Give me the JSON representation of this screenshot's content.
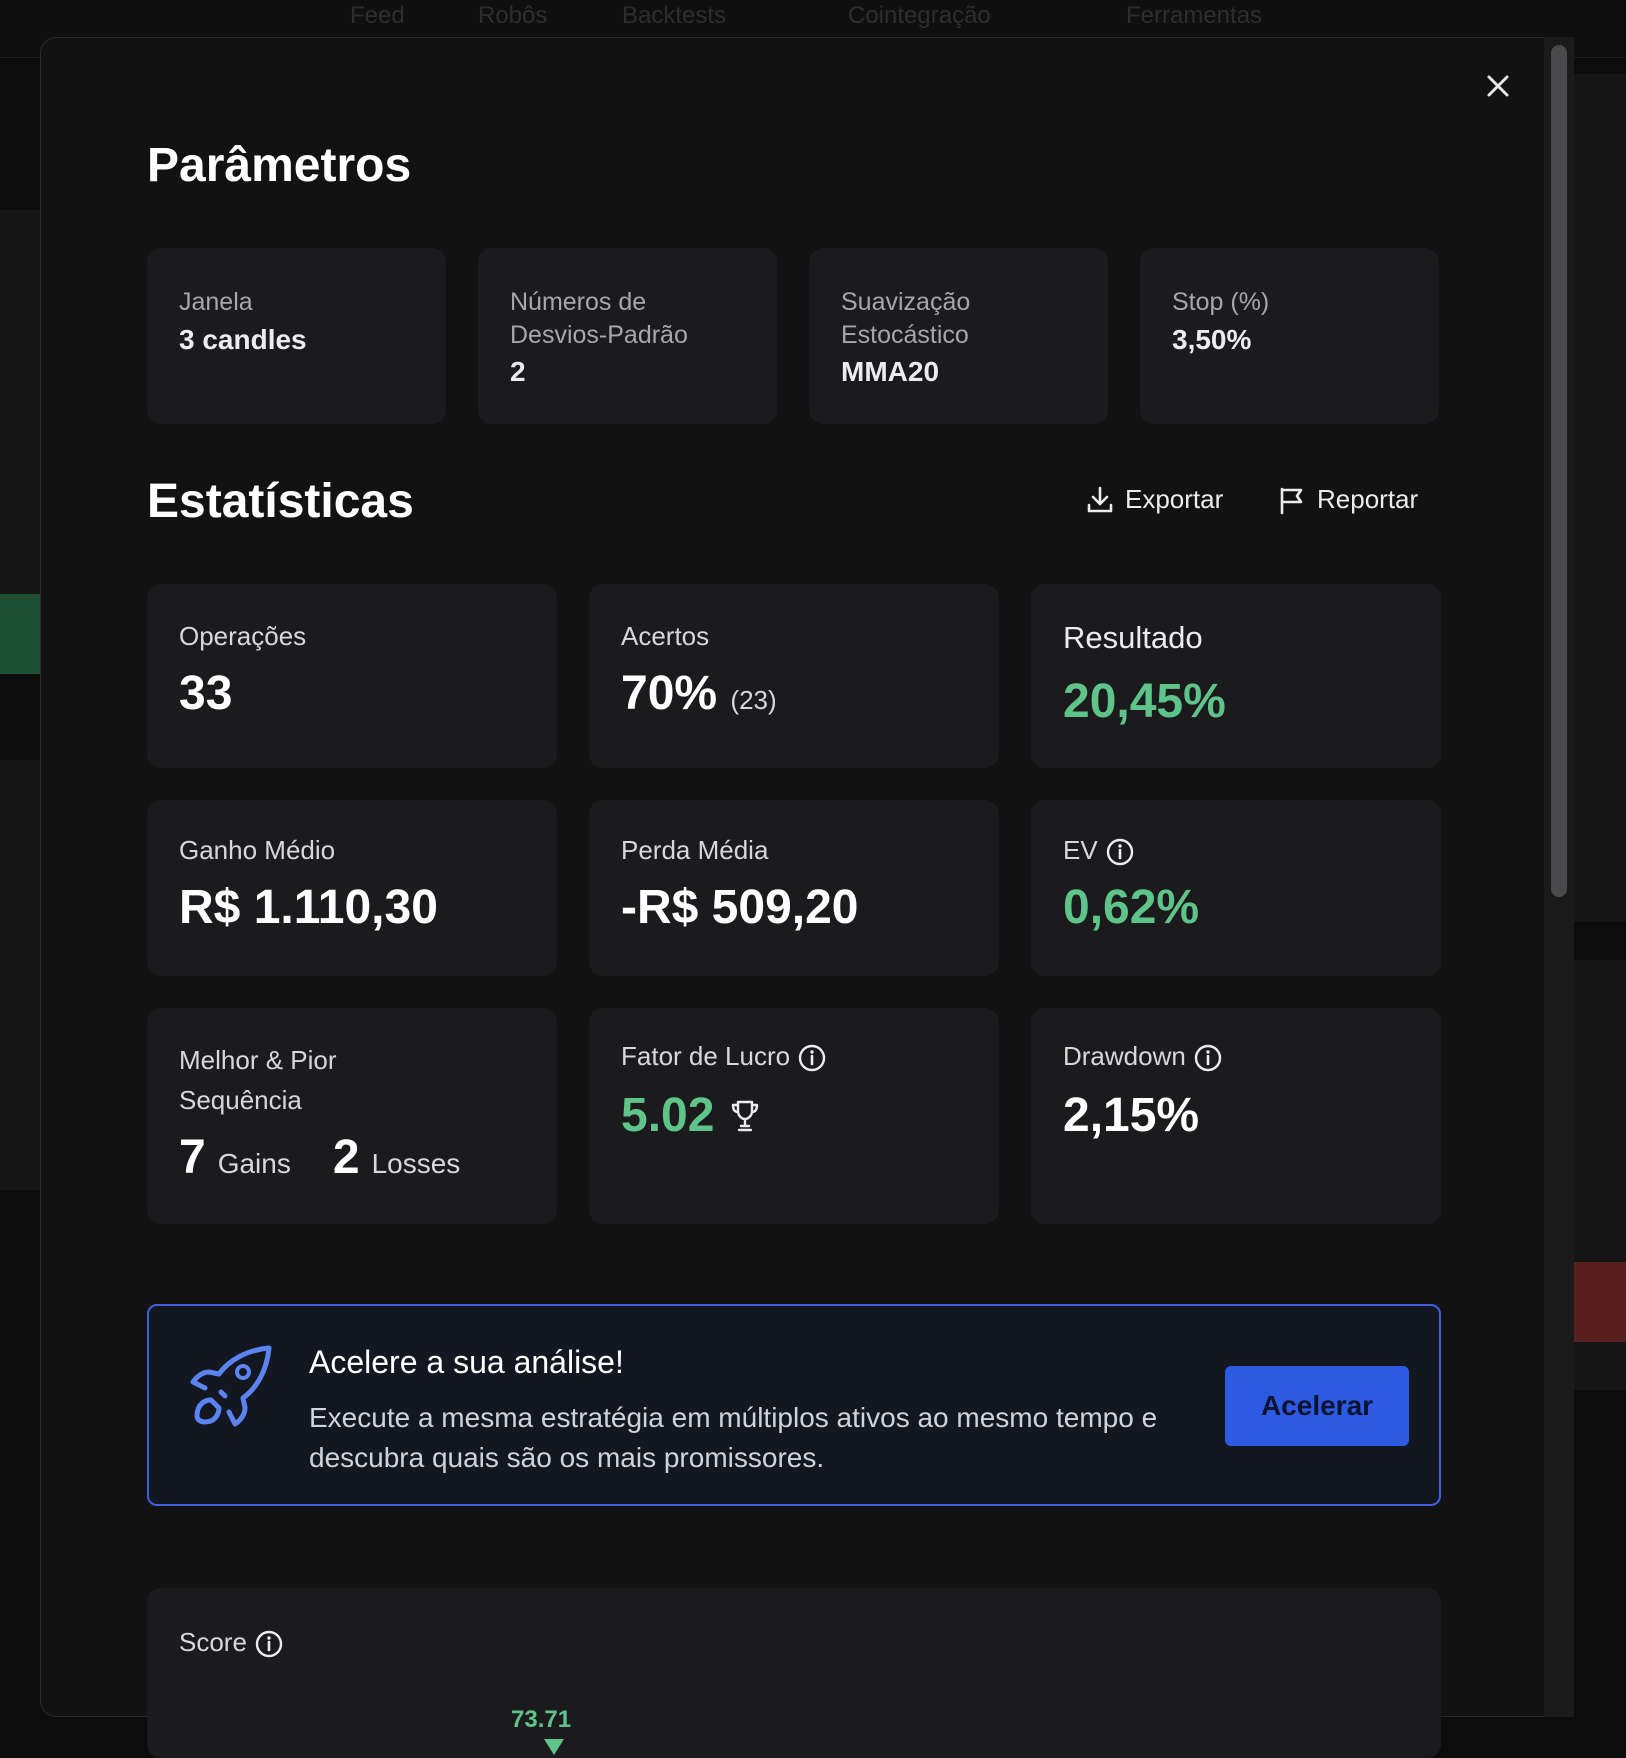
{
  "background": {
    "nav_items": [
      "Feed",
      "Robôs",
      "Backtests",
      "Cointegração",
      "Ferramentas"
    ]
  },
  "modal": {
    "close_icon": "close-icon",
    "parametros": {
      "title": "Parâmetros",
      "items": [
        {
          "label": "Janela",
          "value": "3 candles"
        },
        {
          "label": "Números de\nDesvios-Padrão",
          "value": "2"
        },
        {
          "label": "Suavização\nEstocástico",
          "value": "MMA20"
        },
        {
          "label": "Stop (%)",
          "value": "3,50%"
        }
      ]
    },
    "estatisticas": {
      "title": "Estatísticas",
      "export_label": "Exportar",
      "report_label": "Reportar",
      "operacoes": {
        "label": "Operações",
        "value": "33"
      },
      "acertos": {
        "label": "Acertos",
        "value": "70%",
        "count": "(23)"
      },
      "resultado": {
        "label": "Resultado",
        "value": "20,45%"
      },
      "ganho_medio": {
        "label": "Ganho Médio",
        "value": "R$ 1.110,30"
      },
      "perda_media": {
        "label": "Perda Média",
        "value": "-R$ 509,20"
      },
      "ev": {
        "label": "EV",
        "value": "0,62%"
      },
      "sequencia": {
        "label": "Melhor & Pior\nSequência",
        "gains_value": "7",
        "gains_label": "Gains",
        "losses_value": "2",
        "losses_label": "Losses"
      },
      "fator_lucro": {
        "label": "Fator de Lucro",
        "value": "5.02"
      },
      "drawdown": {
        "label": "Drawdown",
        "value": "2,15%"
      }
    },
    "promo": {
      "title": "Acelere a sua análise!",
      "text": "Execute a mesma estratégia em múltiplos ativos ao mesmo tempo e descubra quais são os mais promissores.",
      "button": "Aceler ar"
    },
    "score": {
      "label": "Score",
      "value": "73.71"
    }
  },
  "colors": {
    "positive": "#5ec48a",
    "accent": "#2d5ae3",
    "card": "#1b1b1d"
  }
}
